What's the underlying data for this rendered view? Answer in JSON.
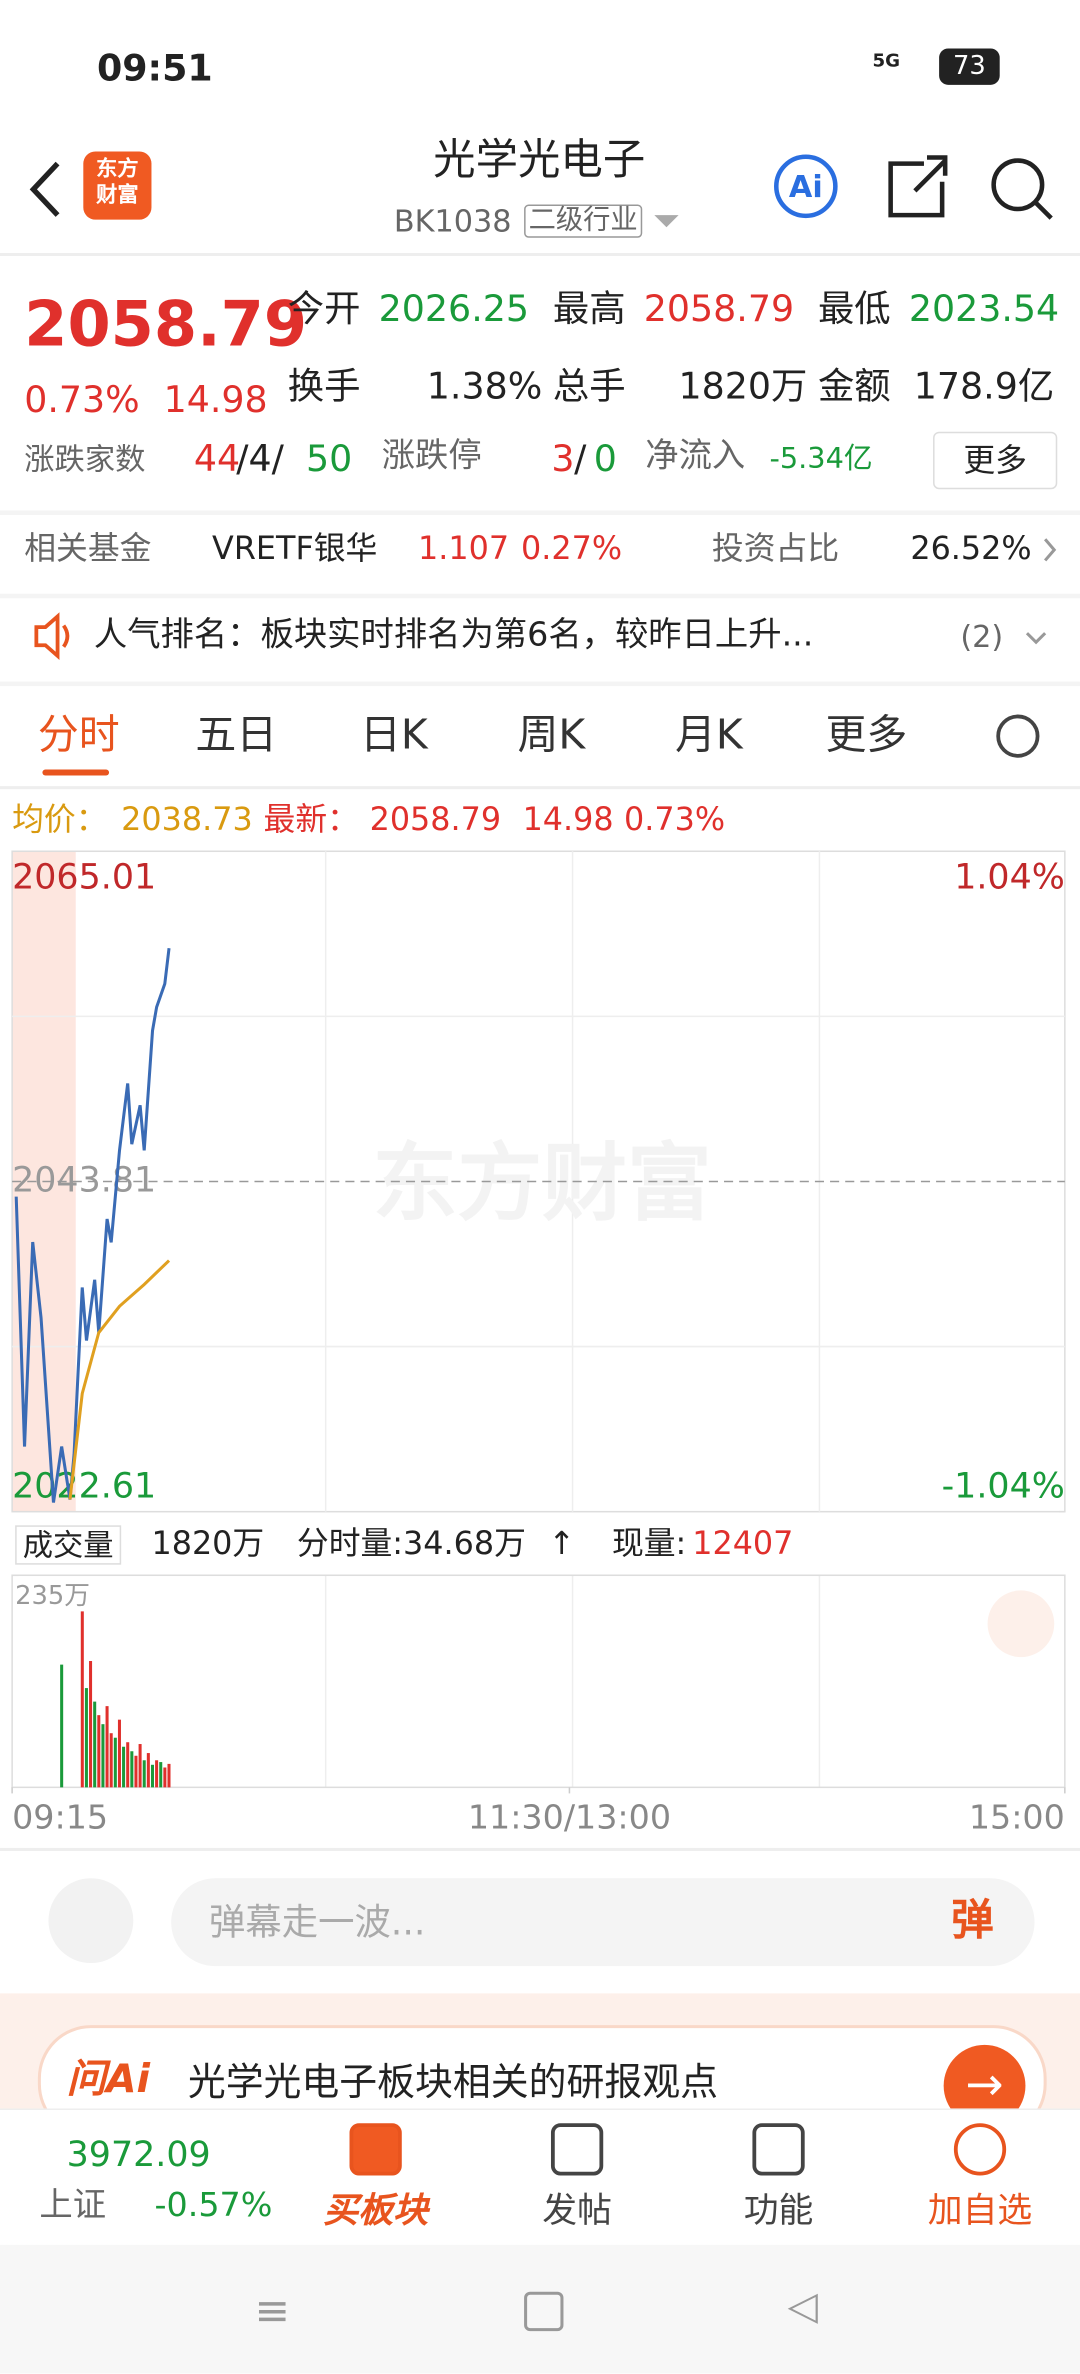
{
  "status": {
    "time": "09:51",
    "battery": "73",
    "net": "5G"
  },
  "header": {
    "logo_top": "东方",
    "logo_bottom": "财富",
    "title": "光学光电子",
    "code": "BK1038",
    "tag": "二级行业",
    "ai": "Ai"
  },
  "quote": {
    "price": "2058.79",
    "change_pct": "0.73%",
    "change": "14.98",
    "stats": [
      {
        "label": "今开",
        "value": "2026.25"
      },
      {
        "label": "最高",
        "value": "2058.79"
      },
      {
        "label": "最低",
        "value": "2023.54"
      },
      {
        "label": "换手",
        "value": "1.38%"
      },
      {
        "label": "总手",
        "value": "1820万"
      },
      {
        "label": "金额",
        "value": "178.9亿"
      }
    ],
    "breadth_label": "涨跌家数",
    "up": "44",
    "flat": "/4/",
    "down": "50",
    "limit_label": "涨跌停",
    "limit_up": "3",
    "limit_sep": "/",
    "limit_down": "0",
    "flow_label": "净流入",
    "flow": "-5.34亿",
    "more": "更多"
  },
  "fund": {
    "label": "相关基金",
    "name": "VRETF银华",
    "price": "1.107",
    "pct": "0.27%",
    "ratio_label": "投资占比",
    "ratio": "26.52%"
  },
  "notice": {
    "text": "人气排名：板块实时排名为第6名，较昨日上升...",
    "count": "(2)"
  },
  "tabs": [
    "分时",
    "五日",
    "日K",
    "周K",
    "月K",
    "更多"
  ],
  "info": {
    "avg_label": "均价：",
    "avg": "2038.73",
    "last_label": "最新：",
    "last": "2058.79",
    "change": "14.98",
    "pct": "0.73%"
  },
  "watermark": "东方财富",
  "volume_info": {
    "label": "成交量",
    "total": "1820万",
    "minute": "分时量:34.68万",
    "arrow": "↑",
    "now_label": "现量:",
    "now": "12407"
  },
  "chart_data": [
    {
      "type": "line",
      "xlim": [
        0,
        255
      ],
      "xticks": [
        {
          "value": 0,
          "label": "09:15"
        },
        {
          "value": 135,
          "label": "11:30/13:00"
        },
        {
          "value": 255,
          "label": "15:00"
        }
      ],
      "ylim": [
        2022.61,
        2065.01
      ],
      "yticks": [
        2065.01,
        2043.81,
        2022.61
      ],
      "y2lim": [
        -1.04,
        1.04
      ],
      "y2ticks": [
        {
          "value": 1.04,
          "label": "1.04%"
        },
        {
          "value": -1.04,
          "label": "-1.04%"
        }
      ],
      "series": [
        {
          "color": "#3a6bb5",
          "x": [
            1,
            3,
            5,
            7,
            10,
            12,
            14,
            15,
            17,
            18,
            20,
            21,
            23,
            24,
            26,
            28,
            29,
            31,
            32,
            34,
            35,
            37,
            38
          ],
          "values": [
            2042.84,
            2026.79,
            2039.92,
            2035.06,
            2023.19,
            2026.79,
            2023.39,
            2026.3,
            2037.0,
            2033.6,
            2037.5,
            2034.1,
            2041.4,
            2039.9,
            2045.8,
            2050.1,
            2046.2,
            2048.7,
            2045.8,
            2053.5,
            2055.0,
            2056.5,
            2058.79
          ]
        },
        {
          "color": "#e0a020",
          "x": [
            14,
            17,
            21,
            26,
            32,
            38
          ],
          "values": [
            2023.4,
            2030.2,
            2034.1,
            2035.8,
            2037.2,
            2038.73
          ]
        }
      ]
    },
    {
      "type": "bar",
      "xlim": [
        0,
        255
      ],
      "ylim": [
        0,
        235
      ],
      "yticks": [
        {
          "value": 235,
          "label": "235万"
        }
      ],
      "x": [
        12,
        17,
        18,
        19,
        20,
        21,
        22,
        23,
        24,
        25,
        26,
        27,
        28,
        29,
        30,
        31,
        32,
        33,
        34,
        35,
        36,
        37,
        38
      ],
      "values": [
        136,
        195,
        110,
        140,
        95,
        80,
        70,
        90,
        60,
        55,
        75,
        45,
        50,
        40,
        35,
        48,
        30,
        38,
        25,
        30,
        28,
        22,
        26
      ],
      "colors": [
        "#1a9a3a",
        "#e0302c",
        "#1a9a3a",
        "#e0302c",
        "#1a9a3a",
        "#e0302c",
        "#1a9a3a",
        "#e0302c",
        "#e0302c",
        "#1a9a3a",
        "#e0302c",
        "#1a9a3a",
        "#e0302c",
        "#1a9a3a",
        "#e0302c",
        "#e0302c",
        "#1a9a3a",
        "#e0302c",
        "#1a9a3a",
        "#e0302c",
        "#1a9a3a",
        "#e0302c",
        "#e0302c"
      ]
    }
  ],
  "comment": {
    "placeholder": "弹幕走一波...",
    "button": "弹"
  },
  "ai_banner": {
    "brand": "问Ai",
    "text": "光学光电子板块相关的研报观点"
  },
  "bottom_nav": {
    "index_value": "3972.09",
    "index_name": "上证",
    "index_pct": "-0.57%",
    "items": [
      "买板块",
      "发帖",
      "功能",
      "加自选"
    ]
  }
}
